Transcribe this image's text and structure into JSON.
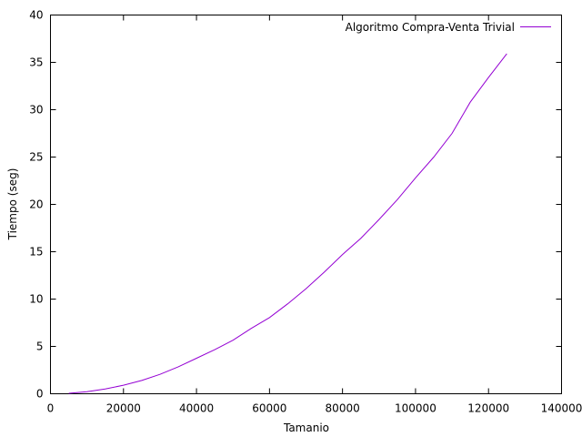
{
  "chart_data": {
    "type": "line",
    "xlabel": "Tamanio",
    "ylabel": "Tiempo (seg)",
    "xlim": [
      0,
      140000
    ],
    "ylim": [
      0,
      40
    ],
    "xticks": [
      0,
      20000,
      40000,
      60000,
      80000,
      100000,
      120000,
      140000
    ],
    "yticks": [
      0,
      5,
      10,
      15,
      20,
      25,
      30,
      35,
      40
    ],
    "grid": false,
    "legend_position": "top-right",
    "series": [
      {
        "name": "Algoritmo Compra-Venta Trivial",
        "color": "#9400d3",
        "x": [
          5000,
          10000,
          15000,
          20000,
          25000,
          30000,
          35000,
          40000,
          45000,
          50000,
          55000,
          60000,
          65000,
          70000,
          75000,
          80000,
          85000,
          90000,
          95000,
          100000,
          105000,
          110000,
          115000,
          120000,
          125000
        ],
        "y": [
          0.05,
          0.22,
          0.5,
          0.9,
          1.4,
          2.05,
          2.85,
          3.75,
          4.65,
          5.65,
          6.9,
          8.05,
          9.5,
          11.1,
          12.85,
          14.7,
          16.4,
          18.4,
          20.5,
          22.8,
          25.0,
          27.5,
          30.8,
          33.4,
          35.9
        ]
      }
    ]
  }
}
